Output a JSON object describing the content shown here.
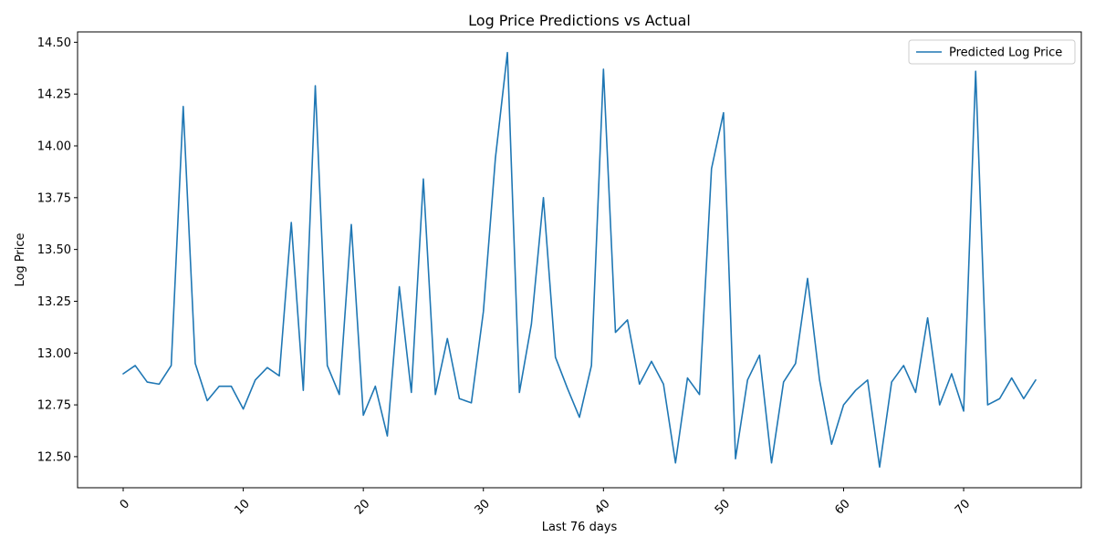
{
  "chart_data": {
    "type": "line",
    "title": "Log Price Predictions vs Actual",
    "xlabel": "Last 76 days",
    "ylabel": "Log Price",
    "xlim": [
      -3.8,
      79.8
    ],
    "ylim": [
      12.35,
      14.55
    ],
    "xticks": [
      0,
      10,
      20,
      30,
      40,
      50,
      60,
      70
    ],
    "yticks": [
      12.5,
      12.75,
      13.0,
      13.25,
      13.5,
      13.75,
      14.0,
      14.25,
      14.5
    ],
    "ytick_labels": [
      "12.50",
      "12.75",
      "13.00",
      "13.25",
      "13.50",
      "13.75",
      "14.00",
      "14.25",
      "14.50"
    ],
    "xtick_rotation": 45,
    "grid": false,
    "legend_position": "top-right",
    "series": [
      {
        "name": "Predicted Log Price",
        "color": "#1f77b4",
        "x": [
          0,
          1,
          2,
          3,
          4,
          5,
          6,
          7,
          8,
          9,
          10,
          11,
          12,
          13,
          14,
          15,
          16,
          17,
          18,
          19,
          20,
          21,
          22,
          23,
          24,
          25,
          26,
          27,
          28,
          29,
          30,
          31,
          32,
          33,
          34,
          35,
          36,
          37,
          38,
          39,
          40,
          41,
          42,
          43,
          44,
          45,
          46,
          47,
          48,
          49,
          50,
          51,
          52,
          53,
          54,
          55,
          56,
          57,
          58,
          59,
          60,
          61,
          62,
          63,
          64,
          65,
          66,
          67,
          68,
          69,
          70,
          71,
          72,
          73,
          74,
          75,
          76
        ],
        "values": [
          12.9,
          12.94,
          12.86,
          12.85,
          12.94,
          14.19,
          12.95,
          12.77,
          12.84,
          12.84,
          12.73,
          12.87,
          12.93,
          12.89,
          13.63,
          12.82,
          14.29,
          12.94,
          12.8,
          13.62,
          12.7,
          12.84,
          12.6,
          13.32,
          12.81,
          13.84,
          12.8,
          13.07,
          12.78,
          12.76,
          13.2,
          13.94,
          14.45,
          12.81,
          13.14,
          13.75,
          12.98,
          12.83,
          12.69,
          12.94,
          14.37,
          13.1,
          13.16,
          12.85,
          12.96,
          12.85,
          12.47,
          12.88,
          12.8,
          13.89,
          14.16,
          12.49,
          12.87,
          12.99,
          12.47,
          12.86,
          12.95,
          13.36,
          12.87,
          12.56,
          12.75,
          12.82,
          12.87,
          12.45,
          12.86,
          12.94,
          12.81,
          13.17,
          12.75,
          12.9,
          12.72,
          14.36,
          12.75,
          12.78,
          12.88,
          12.78,
          12.87
        ]
      }
    ]
  }
}
